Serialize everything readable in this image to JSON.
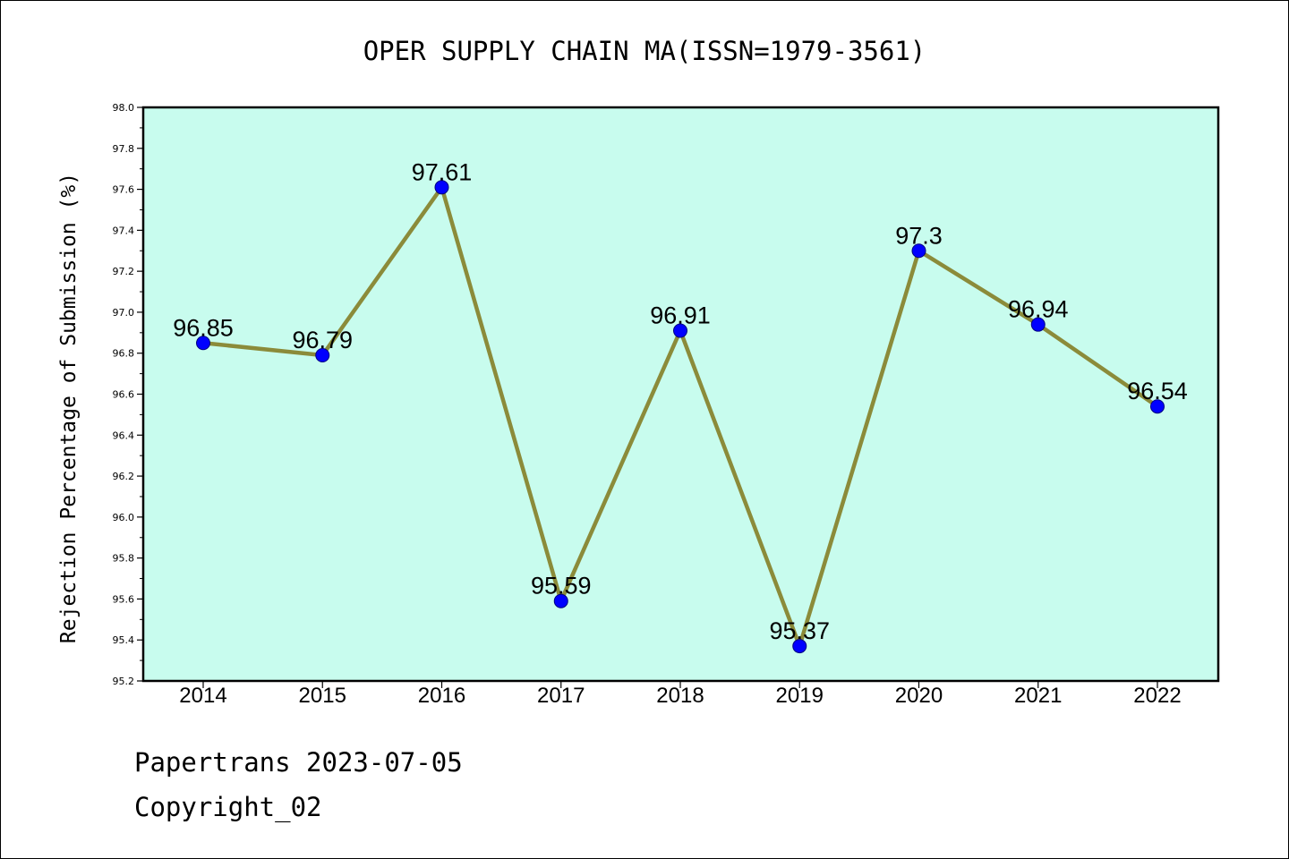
{
  "chart_data": {
    "type": "line",
    "title": "OPER SUPPLY CHAIN MA(ISSN=1979-3561)",
    "xlabel": "",
    "ylabel": "Rejection Percentage of Submission (%)",
    "categories": [
      "2014",
      "2015",
      "2016",
      "2017",
      "2018",
      "2019",
      "2020",
      "2021",
      "2022"
    ],
    "series": [
      {
        "values": [
          96.85,
          96.79,
          97.61,
          95.59,
          96.91,
          95.37,
          97.3,
          96.94,
          96.54
        ],
        "labels": [
          "96.85",
          "96.79",
          "97.61",
          "95.59",
          "96.91",
          "95.37",
          "97.3",
          "96.94",
          "96.54"
        ],
        "line_color": "#8b8b3a",
        "marker_color": "#0000ff"
      }
    ],
    "ylim": [
      95.2,
      98.0
    ],
    "yticks": [
      "95.2",
      "95.4",
      "95.6",
      "95.8",
      "96.0",
      "96.2",
      "96.4",
      "96.6",
      "96.8",
      "97.0",
      "97.2",
      "97.4",
      "97.6",
      "97.8",
      "98.0"
    ],
    "plot_background": "#c8fcee",
    "grid": false,
    "legend": "none"
  },
  "footer": {
    "line1": "Papertrans 2023-07-05",
    "line2": "Copyright_02"
  }
}
